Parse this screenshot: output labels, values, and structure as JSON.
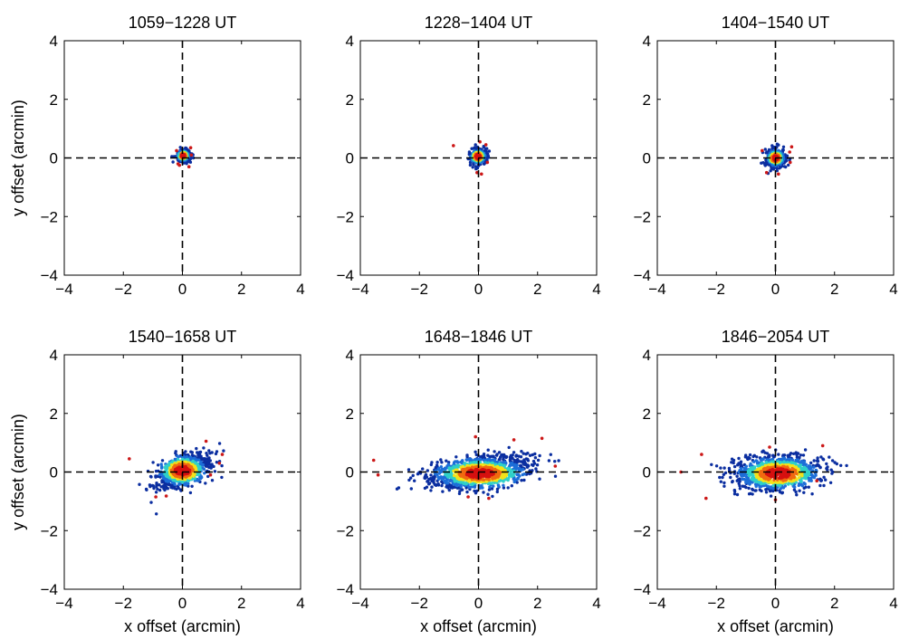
{
  "figure": {
    "background": "#ffffff"
  },
  "chart_data": [
    {
      "type": "scatter",
      "title": "1059−1228 UT",
      "xlabel": "",
      "ylabel": "y offset (arcmin)",
      "xlim": [
        -4,
        4
      ],
      "ylim": [
        -4,
        4
      ],
      "xticks": [
        "−4",
        "−2",
        "0",
        "2",
        "4"
      ],
      "yticks": [
        "−4",
        "−2",
        "0",
        "2",
        "4"
      ],
      "cloud": {
        "cx": 0.05,
        "cy": 0.08,
        "sx": 0.11,
        "sy": 0.1,
        "rho": 0.1,
        "n": 280,
        "core_cx": 0.02,
        "core_cy": 0.08
      },
      "outliers": [
        [
          -0.2,
          0.25
        ],
        [
          0.28,
          0.35
        ],
        [
          -0.1,
          -0.25
        ],
        [
          0.22,
          -0.3
        ],
        [
          0.3,
          0.1
        ],
        [
          -0.15,
          -0.2
        ]
      ],
      "reference_lines": {
        "x": 0,
        "y": 0,
        "style": "dashed"
      },
      "grid": false
    },
    {
      "type": "scatter",
      "title": "1228−1404 UT",
      "xlabel": "",
      "ylabel": "",
      "xlim": [
        -4,
        4
      ],
      "ylim": [
        -4,
        4
      ],
      "xticks": [
        "−4",
        "−2",
        "0",
        "2",
        "4"
      ],
      "yticks": [
        "−4",
        "−2",
        "0",
        "2",
        "4"
      ],
      "cloud": {
        "cx": 0.0,
        "cy": 0.05,
        "sx": 0.14,
        "sy": 0.13,
        "rho": 0.05,
        "n": 320,
        "core_cx": -0.02,
        "core_cy": 0.05
      },
      "outliers": [
        [
          -0.85,
          0.42
        ],
        [
          0.25,
          0.45
        ],
        [
          -0.05,
          -0.5
        ],
        [
          0.3,
          -0.15
        ],
        [
          0.1,
          -0.55
        ],
        [
          0.05,
          0.55
        ]
      ],
      "reference_lines": {
        "x": 0,
        "y": 0,
        "style": "dashed"
      },
      "grid": false
    },
    {
      "type": "scatter",
      "title": "1404−1540 UT",
      "xlabel": "",
      "ylabel": "",
      "xlim": [
        -4,
        4
      ],
      "ylim": [
        -4,
        4
      ],
      "xticks": [
        "−4",
        "−2",
        "0",
        "2",
        "4"
      ],
      "yticks": [
        "−4",
        "−2",
        "0",
        "2",
        "4"
      ],
      "cloud": {
        "cx": 0.0,
        "cy": 0.0,
        "sx": 0.16,
        "sy": 0.15,
        "rho": 0.05,
        "n": 380,
        "core_cx": 0.0,
        "core_cy": 0.0
      },
      "outliers": [
        [
          0.55,
          0.38
        ],
        [
          0.48,
          0.2
        ],
        [
          -0.3,
          -0.5
        ],
        [
          -0.45,
          0.25
        ],
        [
          0.5,
          -0.15
        ],
        [
          0.1,
          -0.55
        ]
      ],
      "reference_lines": {
        "x": 0,
        "y": 0,
        "style": "dashed"
      },
      "grid": false
    },
    {
      "type": "scatter",
      "title": "1540−1658 UT",
      "xlabel": "x offset (arcmin)",
      "ylabel": "y offset (arcmin)",
      "xlim": [
        -4,
        4
      ],
      "ylim": [
        -4,
        4
      ],
      "xticks": [
        "−4",
        "−2",
        "0",
        "2",
        "4"
      ],
      "yticks": [
        "−4",
        "−2",
        "0",
        "2",
        "4"
      ],
      "cloud": {
        "cx": 0.05,
        "cy": 0.05,
        "sx": 0.45,
        "sy": 0.28,
        "rho": 0.45,
        "n": 750,
        "core_cx": 0.0,
        "core_cy": 0.05
      },
      "outliers": [
        [
          -1.8,
          0.45
        ],
        [
          -0.9,
          -0.85
        ],
        [
          1.35,
          0.6
        ],
        [
          0.8,
          1.05
        ],
        [
          -0.55,
          -0.82
        ],
        [
          1.25,
          0.3
        ],
        [
          0.95,
          -0.1
        ]
      ],
      "reference_lines": {
        "x": 0,
        "y": 0,
        "style": "dashed"
      },
      "grid": false
    },
    {
      "type": "scatter",
      "title": "1648−1846 UT",
      "xlabel": "x offset (arcmin)",
      "ylabel": "",
      "xlim": [
        -4,
        4
      ],
      "ylim": [
        -4,
        4
      ],
      "xticks": [
        "−4",
        "−2",
        "0",
        "2",
        "4"
      ],
      "yticks": [
        "−4",
        "−2",
        "0",
        "2",
        "4"
      ],
      "cloud": {
        "cx": 0.0,
        "cy": 0.0,
        "sx": 0.85,
        "sy": 0.28,
        "rho": 0.35,
        "n": 1100,
        "core_cx": 0.05,
        "core_cy": -0.05
      },
      "outliers": [
        [
          -3.55,
          0.4
        ],
        [
          -3.4,
          -0.1
        ],
        [
          2.6,
          0.2
        ],
        [
          2.15,
          1.15
        ],
        [
          -0.35,
          -0.85
        ],
        [
          0.35,
          -0.9
        ],
        [
          1.2,
          1.1
        ],
        [
          -0.1,
          1.2
        ]
      ],
      "reference_lines": {
        "x": 0,
        "y": 0,
        "style": "dashed"
      },
      "grid": false
    },
    {
      "type": "scatter",
      "title": "1846−2054 UT",
      "xlabel": "x offset (arcmin)",
      "ylabel": "",
      "xlim": [
        -4,
        4
      ],
      "ylim": [
        -4,
        4
      ],
      "xticks": [
        "−4",
        "−2",
        "0",
        "2",
        "4"
      ],
      "yticks": [
        "−4",
        "−2",
        "0",
        "2",
        "4"
      ],
      "cloud": {
        "cx": 0.05,
        "cy": 0.0,
        "sx": 0.75,
        "sy": 0.3,
        "rho": 0.1,
        "n": 1050,
        "core_cx": 0.1,
        "core_cy": -0.05
      },
      "outliers": [
        [
          -3.2,
          0.0
        ],
        [
          -2.5,
          0.6
        ],
        [
          -2.35,
          -0.9
        ],
        [
          1.6,
          0.9
        ],
        [
          0.0,
          -0.95
        ],
        [
          1.4,
          -0.3
        ],
        [
          -0.2,
          0.85
        ]
      ],
      "reference_lines": {
        "x": 0,
        "y": 0,
        "style": "dashed"
      },
      "grid": false
    }
  ],
  "colormap": {
    "low": "#0b2ea0",
    "mid_low": "#1d6ed8",
    "mid": "#2fd0c8",
    "mid_high": "#f2e21a",
    "high": "#f06a10",
    "peak": "#d61010",
    "outlier": "#cc1818"
  }
}
